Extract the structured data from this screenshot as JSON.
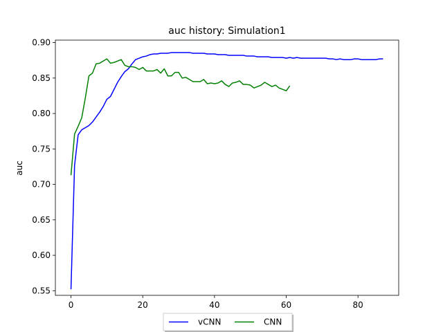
{
  "chart_data": {
    "type": "line",
    "title": "auc history:  Simulation1",
    "xlabel": "",
    "ylabel": "auc",
    "xlim": [
      -4.35,
      91.35
    ],
    "ylim": [
      0.5435,
      0.9035
    ],
    "xticks": [
      0,
      20,
      40,
      60,
      80
    ],
    "yticks": [
      0.55,
      0.6,
      0.65,
      0.7,
      0.75,
      0.8,
      0.85,
      0.9
    ],
    "ytick_labels": [
      "0.55",
      "0.60",
      "0.65",
      "0.70",
      "0.75",
      "0.80",
      "0.85",
      "0.90"
    ],
    "grid": false,
    "legend_position": "below",
    "series": [
      {
        "name": "vCNN",
        "color": "#0000ff",
        "values": [
          0.552,
          0.727,
          0.77,
          0.777,
          0.78,
          0.783,
          0.788,
          0.795,
          0.802,
          0.81,
          0.82,
          0.824,
          0.834,
          0.844,
          0.852,
          0.859,
          0.863,
          0.87,
          0.876,
          0.878,
          0.88,
          0.881,
          0.883,
          0.884,
          0.884,
          0.885,
          0.885,
          0.885,
          0.886,
          0.886,
          0.886,
          0.886,
          0.886,
          0.886,
          0.885,
          0.885,
          0.885,
          0.885,
          0.884,
          0.884,
          0.884,
          0.883,
          0.883,
          0.883,
          0.882,
          0.882,
          0.882,
          0.882,
          0.882,
          0.881,
          0.881,
          0.881,
          0.88,
          0.88,
          0.88,
          0.88,
          0.879,
          0.879,
          0.879,
          0.879,
          0.878,
          0.879,
          0.878,
          0.879,
          0.878,
          0.878,
          0.878,
          0.878,
          0.878,
          0.878,
          0.878,
          0.878,
          0.877,
          0.877,
          0.876,
          0.877,
          0.876,
          0.876,
          0.876,
          0.877,
          0.877,
          0.876,
          0.876,
          0.876,
          0.876,
          0.876,
          0.877,
          0.877
        ]
      },
      {
        "name": "CNN",
        "color": "#008000",
        "values": [
          0.713,
          0.771,
          0.782,
          0.794,
          0.822,
          0.853,
          0.857,
          0.87,
          0.871,
          0.874,
          0.877,
          0.871,
          0.872,
          0.874,
          0.876,
          0.868,
          0.866,
          0.866,
          0.865,
          0.862,
          0.865,
          0.86,
          0.86,
          0.86,
          0.862,
          0.857,
          0.863,
          0.853,
          0.853,
          0.858,
          0.858,
          0.85,
          0.851,
          0.848,
          0.845,
          0.845,
          0.845,
          0.848,
          0.842,
          0.843,
          0.842,
          0.843,
          0.846,
          0.841,
          0.838,
          0.843,
          0.844,
          0.846,
          0.841,
          0.841,
          0.84,
          0.836,
          0.838,
          0.84,
          0.844,
          0.841,
          0.838,
          0.84,
          0.836,
          0.834,
          0.832,
          0.839
        ]
      }
    ]
  }
}
